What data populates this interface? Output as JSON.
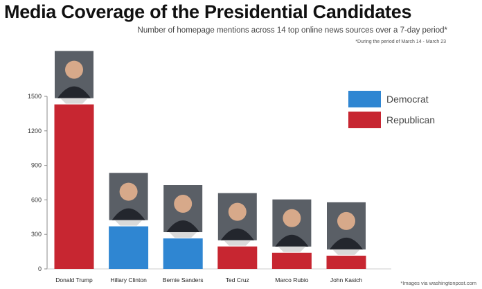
{
  "colors": {
    "democrat": "#2f86d2",
    "republican": "#c72631",
    "axis": "#888888"
  },
  "images_alt": "",
  "chart_data": {
    "type": "bar",
    "title": "Media Coverage of the Presidential Candidates",
    "subtitle": "Number of homepage mentions across 14 top online news sources over a 7-day period*",
    "note": "*During the period of March 14 - March 23",
    "credit": "*Images via washingtonpost.com",
    "categories": [
      "Donald Trump",
      "Hillary Clinton",
      "Bernie Sanders",
      "Ted Cruz",
      "Marco Rubio",
      "John Kasich"
    ],
    "party": [
      "Republican",
      "Democrat",
      "Democrat",
      "Republican",
      "Republican",
      "Republican"
    ],
    "values": [
      1430,
      370,
      265,
      195,
      140,
      115
    ],
    "ylim": [
      0,
      1500
    ],
    "yticks": [
      0,
      300,
      600,
      900,
      1200,
      1500
    ],
    "legend": [
      {
        "label": "Democrat",
        "party": "Democrat"
      },
      {
        "label": "Republican",
        "party": "Republican"
      }
    ],
    "legend_position": "top-right",
    "grid": false
  }
}
